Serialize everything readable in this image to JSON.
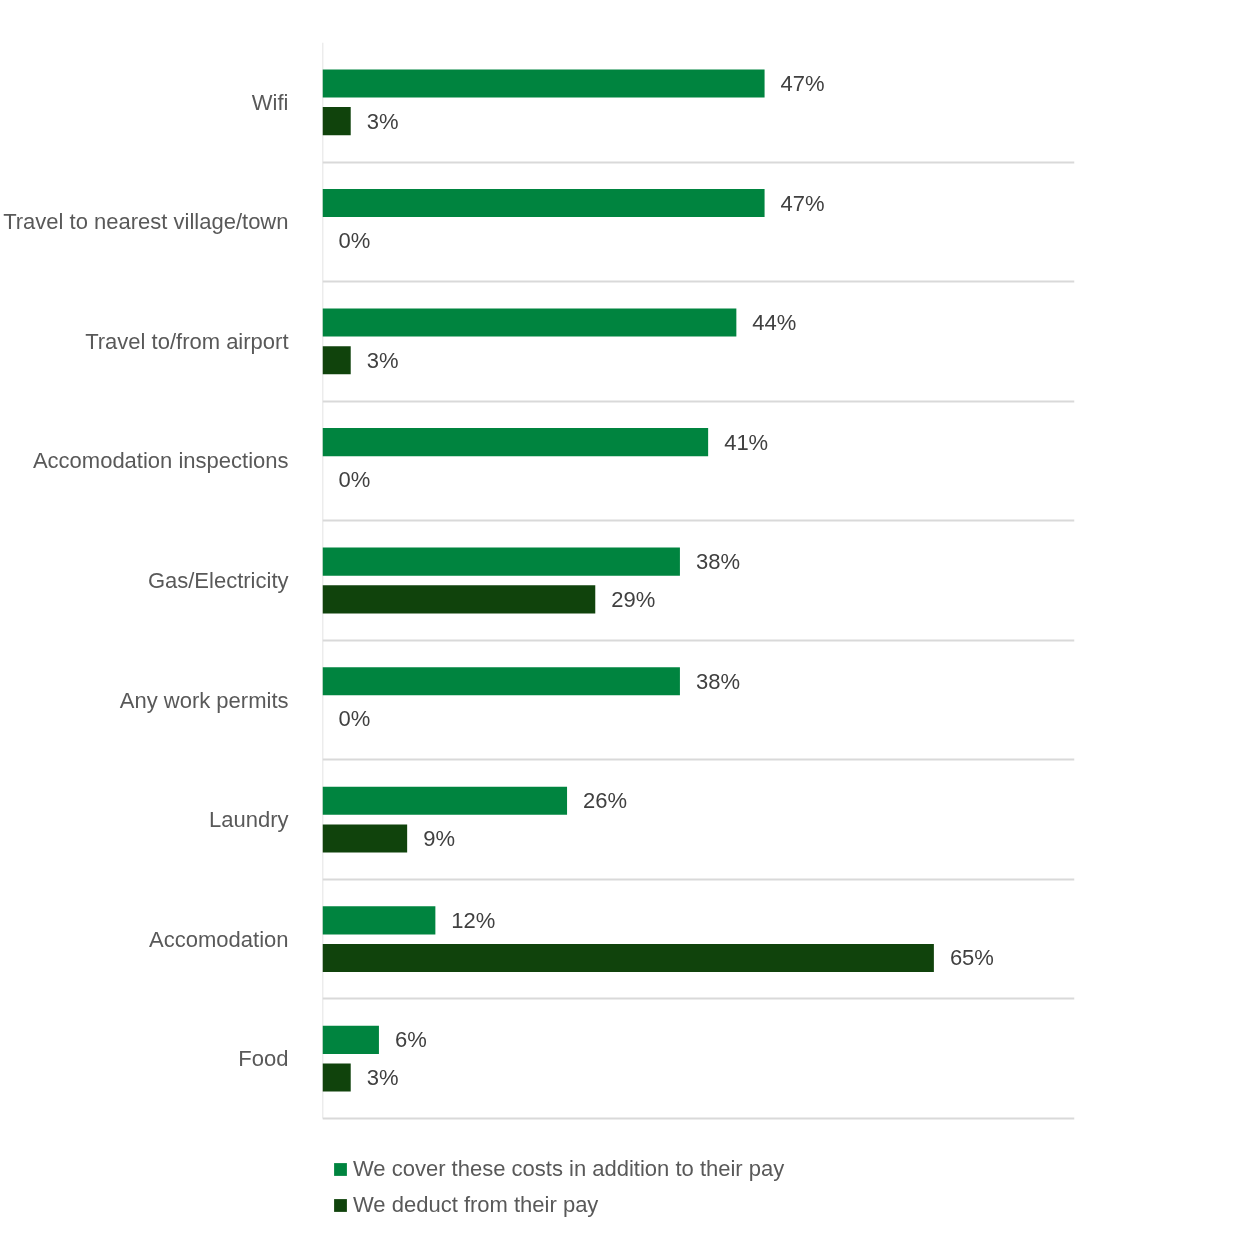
{
  "chart_data": {
    "type": "bar",
    "orientation": "horizontal",
    "categories": [
      "Wifi",
      "Travel to nearest village/town",
      "Travel to/from airport",
      "Accomodation inspections",
      "Gas/Electricity",
      "Any work permits",
      "Laundry",
      "Accomodation",
      "Food"
    ],
    "series": [
      {
        "name": "We cover these costs in addition to their pay",
        "color": "#00843f",
        "values": [
          47,
          47,
          44,
          41,
          38,
          38,
          26,
          12,
          6
        ],
        "value_labels": [
          "47%",
          "47%",
          "44%",
          "41%",
          "38%",
          "38%",
          "26%",
          "12%",
          "6%"
        ]
      },
      {
        "name": "We deduct from their pay",
        "color": "#10430c",
        "values": [
          3,
          0,
          3,
          0,
          29,
          0,
          9,
          65,
          3
        ],
        "value_labels": [
          "3%",
          "0%",
          "3%",
          "0%",
          "29%",
          "0%",
          "9%",
          "65%",
          "3%"
        ]
      }
    ],
    "tick_labels": "y",
    "grid": "y",
    "legend": "bottom"
  }
}
